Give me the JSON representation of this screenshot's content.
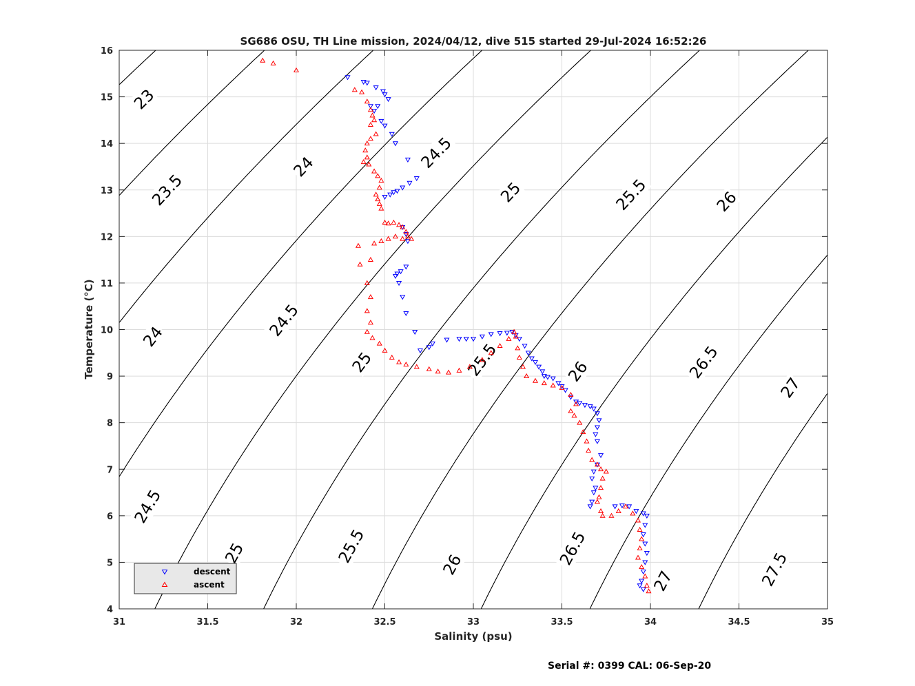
{
  "chart_data": {
    "type": "scatter",
    "title": "SG686 OSU, TH Line mission, 2024/04/12, dive 515 started 29-Jul-2024 16:52:26",
    "xlabel": "Salinity (psu)",
    "ylabel": "Temperature (°C)",
    "xlim": [
      31,
      35
    ],
    "ylim": [
      4,
      16
    ],
    "grid": true,
    "x_ticks": [
      "31",
      "31.5",
      "32",
      "32.5",
      "33",
      "33.5",
      "34",
      "34.5",
      "35"
    ],
    "y_ticks": [
      "4",
      "5",
      "6",
      "7",
      "8",
      "9",
      "10",
      "11",
      "12",
      "13",
      "14",
      "15",
      "16"
    ],
    "legend_position": "bottom-left",
    "footer": "Serial #: 0399  CAL: 06-Sep-20",
    "density_contours": [
      {
        "sigma": 23,
        "labels": [
          {
            "text": "23",
            "s": 31.14,
            "t": 14.95
          }
        ]
      },
      {
        "sigma": 23.5,
        "labels": [
          {
            "text": "23.5",
            "s": 31.27,
            "t": 13.0
          }
        ]
      },
      {
        "sigma": 24,
        "labels": [
          {
            "text": "24",
            "s": 32.04,
            "t": 13.5
          },
          {
            "text": "24",
            "s": 31.19,
            "t": 9.85
          }
        ]
      },
      {
        "sigma": 24.5,
        "labels": [
          {
            "text": "24.5",
            "s": 32.79,
            "t": 13.8
          },
          {
            "text": "24.5",
            "s": 31.93,
            "t": 10.2
          },
          {
            "text": "24.5",
            "s": 31.16,
            "t": 6.2
          }
        ]
      },
      {
        "sigma": 25,
        "labels": [
          {
            "text": "25",
            "s": 33.21,
            "t": 12.95
          },
          {
            "text": "25",
            "s": 32.37,
            "t": 9.3
          },
          {
            "text": "25",
            "s": 31.65,
            "t": 5.2
          }
        ]
      },
      {
        "sigma": 25.5,
        "labels": [
          {
            "text": "25.5",
            "s": 33.89,
            "t": 12.9
          },
          {
            "text": "25.5",
            "s": 33.05,
            "t": 9.35
          },
          {
            "text": "25.5",
            "s": 32.31,
            "t": 5.35
          }
        ]
      },
      {
        "sigma": 26,
        "labels": [
          {
            "text": "26",
            "s": 34.43,
            "t": 12.75
          },
          {
            "text": "26",
            "s": 33.59,
            "t": 9.1
          },
          {
            "text": "26",
            "s": 32.88,
            "t": 4.95
          }
        ]
      },
      {
        "sigma": 26.5,
        "labels": [
          {
            "text": "26.5",
            "s": 34.3,
            "t": 9.3
          },
          {
            "text": "26.5",
            "s": 33.56,
            "t": 5.3
          }
        ]
      },
      {
        "sigma": 27,
        "labels": [
          {
            "text": "27",
            "s": 34.79,
            "t": 8.75
          },
          {
            "text": "27",
            "s": 34.07,
            "t": 4.6
          }
        ]
      },
      {
        "sigma": 27.5,
        "labels": [
          {
            "text": "27.5",
            "s": 34.7,
            "t": 4.85
          }
        ]
      }
    ],
    "series": [
      {
        "name": "descent",
        "marker": "triangle-down",
        "color": "#0000ff",
        "points": [
          [
            32.29,
            15.42
          ],
          [
            32.38,
            15.32
          ],
          [
            32.4,
            15.3
          ],
          [
            32.45,
            15.2
          ],
          [
            32.49,
            15.12
          ],
          [
            32.5,
            15.05
          ],
          [
            32.52,
            14.95
          ],
          [
            32.46,
            14.8
          ],
          [
            32.42,
            14.8
          ],
          [
            32.44,
            14.7
          ],
          [
            32.48,
            14.48
          ],
          [
            32.5,
            14.38
          ],
          [
            32.54,
            14.2
          ],
          [
            32.56,
            14.0
          ],
          [
            32.63,
            13.65
          ],
          [
            32.68,
            13.25
          ],
          [
            32.64,
            13.15
          ],
          [
            32.6,
            13.05
          ],
          [
            32.57,
            12.98
          ],
          [
            32.55,
            12.95
          ],
          [
            32.53,
            12.9
          ],
          [
            32.5,
            12.85
          ],
          [
            32.6,
            12.2
          ],
          [
            32.62,
            12.05
          ],
          [
            32.63,
            11.9
          ],
          [
            32.62,
            11.35
          ],
          [
            32.59,
            11.25
          ],
          [
            32.57,
            11.2
          ],
          [
            32.56,
            11.15
          ],
          [
            32.58,
            11.0
          ],
          [
            32.6,
            10.7
          ],
          [
            32.62,
            10.35
          ],
          [
            32.67,
            9.95
          ],
          [
            32.7,
            9.55
          ],
          [
            32.75,
            9.62
          ],
          [
            32.77,
            9.7
          ],
          [
            32.85,
            9.78
          ],
          [
            32.92,
            9.8
          ],
          [
            32.96,
            9.8
          ],
          [
            33.0,
            9.8
          ],
          [
            33.05,
            9.85
          ],
          [
            33.1,
            9.9
          ],
          [
            33.15,
            9.92
          ],
          [
            33.19,
            9.93
          ],
          [
            33.22,
            9.95
          ],
          [
            33.24,
            9.88
          ],
          [
            33.26,
            9.8
          ],
          [
            33.29,
            9.65
          ],
          [
            33.31,
            9.5
          ],
          [
            33.33,
            9.38
          ],
          [
            33.35,
            9.3
          ],
          [
            33.37,
            9.2
          ],
          [
            33.39,
            9.1
          ],
          [
            33.4,
            9.0
          ],
          [
            33.42,
            8.98
          ],
          [
            33.45,
            8.95
          ],
          [
            33.48,
            8.85
          ],
          [
            33.5,
            8.78
          ],
          [
            33.52,
            8.7
          ],
          [
            33.55,
            8.55
          ],
          [
            33.58,
            8.45
          ],
          [
            33.6,
            8.42
          ],
          [
            33.63,
            8.38
          ],
          [
            33.66,
            8.35
          ],
          [
            33.68,
            8.3
          ],
          [
            33.7,
            8.2
          ],
          [
            33.71,
            8.05
          ],
          [
            33.7,
            7.9
          ],
          [
            33.69,
            7.75
          ],
          [
            33.7,
            7.6
          ],
          [
            33.72,
            7.3
          ],
          [
            33.7,
            7.1
          ],
          [
            33.68,
            6.95
          ],
          [
            33.67,
            6.8
          ],
          [
            33.69,
            6.6
          ],
          [
            33.68,
            6.5
          ],
          [
            33.67,
            6.3
          ],
          [
            33.66,
            6.2
          ],
          [
            33.8,
            6.2
          ],
          [
            33.84,
            6.22
          ],
          [
            33.88,
            6.2
          ],
          [
            33.92,
            6.1
          ],
          [
            33.96,
            6.05
          ],
          [
            33.98,
            6.0
          ],
          [
            33.97,
            5.8
          ],
          [
            33.96,
            5.6
          ],
          [
            33.97,
            5.4
          ],
          [
            33.98,
            5.2
          ],
          [
            33.97,
            5.0
          ],
          [
            33.96,
            4.8
          ],
          [
            33.95,
            4.6
          ],
          [
            33.94,
            4.5
          ],
          [
            33.96,
            4.42
          ]
        ]
      },
      {
        "name": "ascent",
        "marker": "triangle-up",
        "color": "#ff0000",
        "points": [
          [
            31.81,
            15.78
          ],
          [
            31.87,
            15.72
          ],
          [
            32.0,
            15.57
          ],
          [
            32.33,
            15.15
          ],
          [
            32.37,
            15.1
          ],
          [
            32.4,
            14.9
          ],
          [
            32.42,
            14.72
          ],
          [
            32.43,
            14.6
          ],
          [
            32.44,
            14.5
          ],
          [
            32.42,
            14.4
          ],
          [
            32.45,
            14.2
          ],
          [
            32.42,
            14.1
          ],
          [
            32.4,
            14.0
          ],
          [
            32.39,
            13.85
          ],
          [
            32.4,
            13.7
          ],
          [
            32.38,
            13.6
          ],
          [
            32.41,
            13.55
          ],
          [
            32.44,
            13.4
          ],
          [
            32.46,
            13.3
          ],
          [
            32.48,
            13.2
          ],
          [
            32.47,
            13.05
          ],
          [
            32.45,
            12.9
          ],
          [
            32.46,
            12.8
          ],
          [
            32.47,
            12.7
          ],
          [
            32.48,
            12.6
          ],
          [
            32.5,
            12.3
          ],
          [
            32.52,
            12.28
          ],
          [
            32.55,
            12.3
          ],
          [
            32.58,
            12.25
          ],
          [
            32.6,
            12.2
          ],
          [
            32.62,
            12.1
          ],
          [
            32.63,
            12.0
          ],
          [
            32.65,
            11.95
          ],
          [
            32.6,
            11.95
          ],
          [
            32.56,
            12.0
          ],
          [
            32.52,
            11.95
          ],
          [
            32.48,
            11.9
          ],
          [
            32.44,
            11.85
          ],
          [
            32.42,
            11.5
          ],
          [
            32.35,
            11.8
          ],
          [
            32.36,
            11.4
          ],
          [
            32.4,
            11.0
          ],
          [
            32.42,
            10.7
          ],
          [
            32.4,
            10.4
          ],
          [
            32.42,
            10.15
          ],
          [
            32.4,
            9.95
          ],
          [
            32.43,
            9.82
          ],
          [
            32.47,
            9.7
          ],
          [
            32.5,
            9.55
          ],
          [
            32.54,
            9.4
          ],
          [
            32.58,
            9.3
          ],
          [
            32.62,
            9.25
          ],
          [
            32.68,
            9.2
          ],
          [
            32.75,
            9.15
          ],
          [
            32.8,
            9.1
          ],
          [
            32.86,
            9.08
          ],
          [
            32.92,
            9.12
          ],
          [
            32.98,
            9.2
          ],
          [
            33.05,
            9.35
          ],
          [
            33.1,
            9.5
          ],
          [
            33.15,
            9.65
          ],
          [
            33.2,
            9.8
          ],
          [
            33.23,
            9.95
          ],
          [
            33.24,
            9.85
          ],
          [
            33.25,
            9.6
          ],
          [
            33.26,
            9.4
          ],
          [
            33.28,
            9.2
          ],
          [
            33.3,
            9.0
          ],
          [
            33.35,
            8.9
          ],
          [
            33.4,
            8.85
          ],
          [
            33.45,
            8.8
          ],
          [
            33.5,
            8.75
          ],
          [
            33.55,
            8.6
          ],
          [
            33.58,
            8.4
          ],
          [
            33.55,
            8.25
          ],
          [
            33.57,
            8.15
          ],
          [
            33.6,
            8.0
          ],
          [
            33.62,
            7.8
          ],
          [
            33.64,
            7.6
          ],
          [
            33.65,
            7.4
          ],
          [
            33.67,
            7.2
          ],
          [
            33.7,
            7.1
          ],
          [
            33.72,
            7.0
          ],
          [
            33.75,
            6.95
          ],
          [
            33.73,
            6.8
          ],
          [
            33.72,
            6.6
          ],
          [
            33.71,
            6.4
          ],
          [
            33.7,
            6.3
          ],
          [
            33.72,
            6.1
          ],
          [
            33.73,
            6.0
          ],
          [
            33.78,
            6.0
          ],
          [
            33.82,
            6.1
          ],
          [
            33.86,
            6.2
          ],
          [
            33.9,
            6.05
          ],
          [
            33.93,
            5.9
          ],
          [
            33.94,
            5.7
          ],
          [
            33.95,
            5.5
          ],
          [
            33.94,
            5.3
          ],
          [
            33.93,
            5.1
          ],
          [
            33.95,
            4.9
          ],
          [
            33.97,
            4.7
          ],
          [
            33.98,
            4.5
          ],
          [
            33.99,
            4.38
          ]
        ]
      }
    ]
  }
}
